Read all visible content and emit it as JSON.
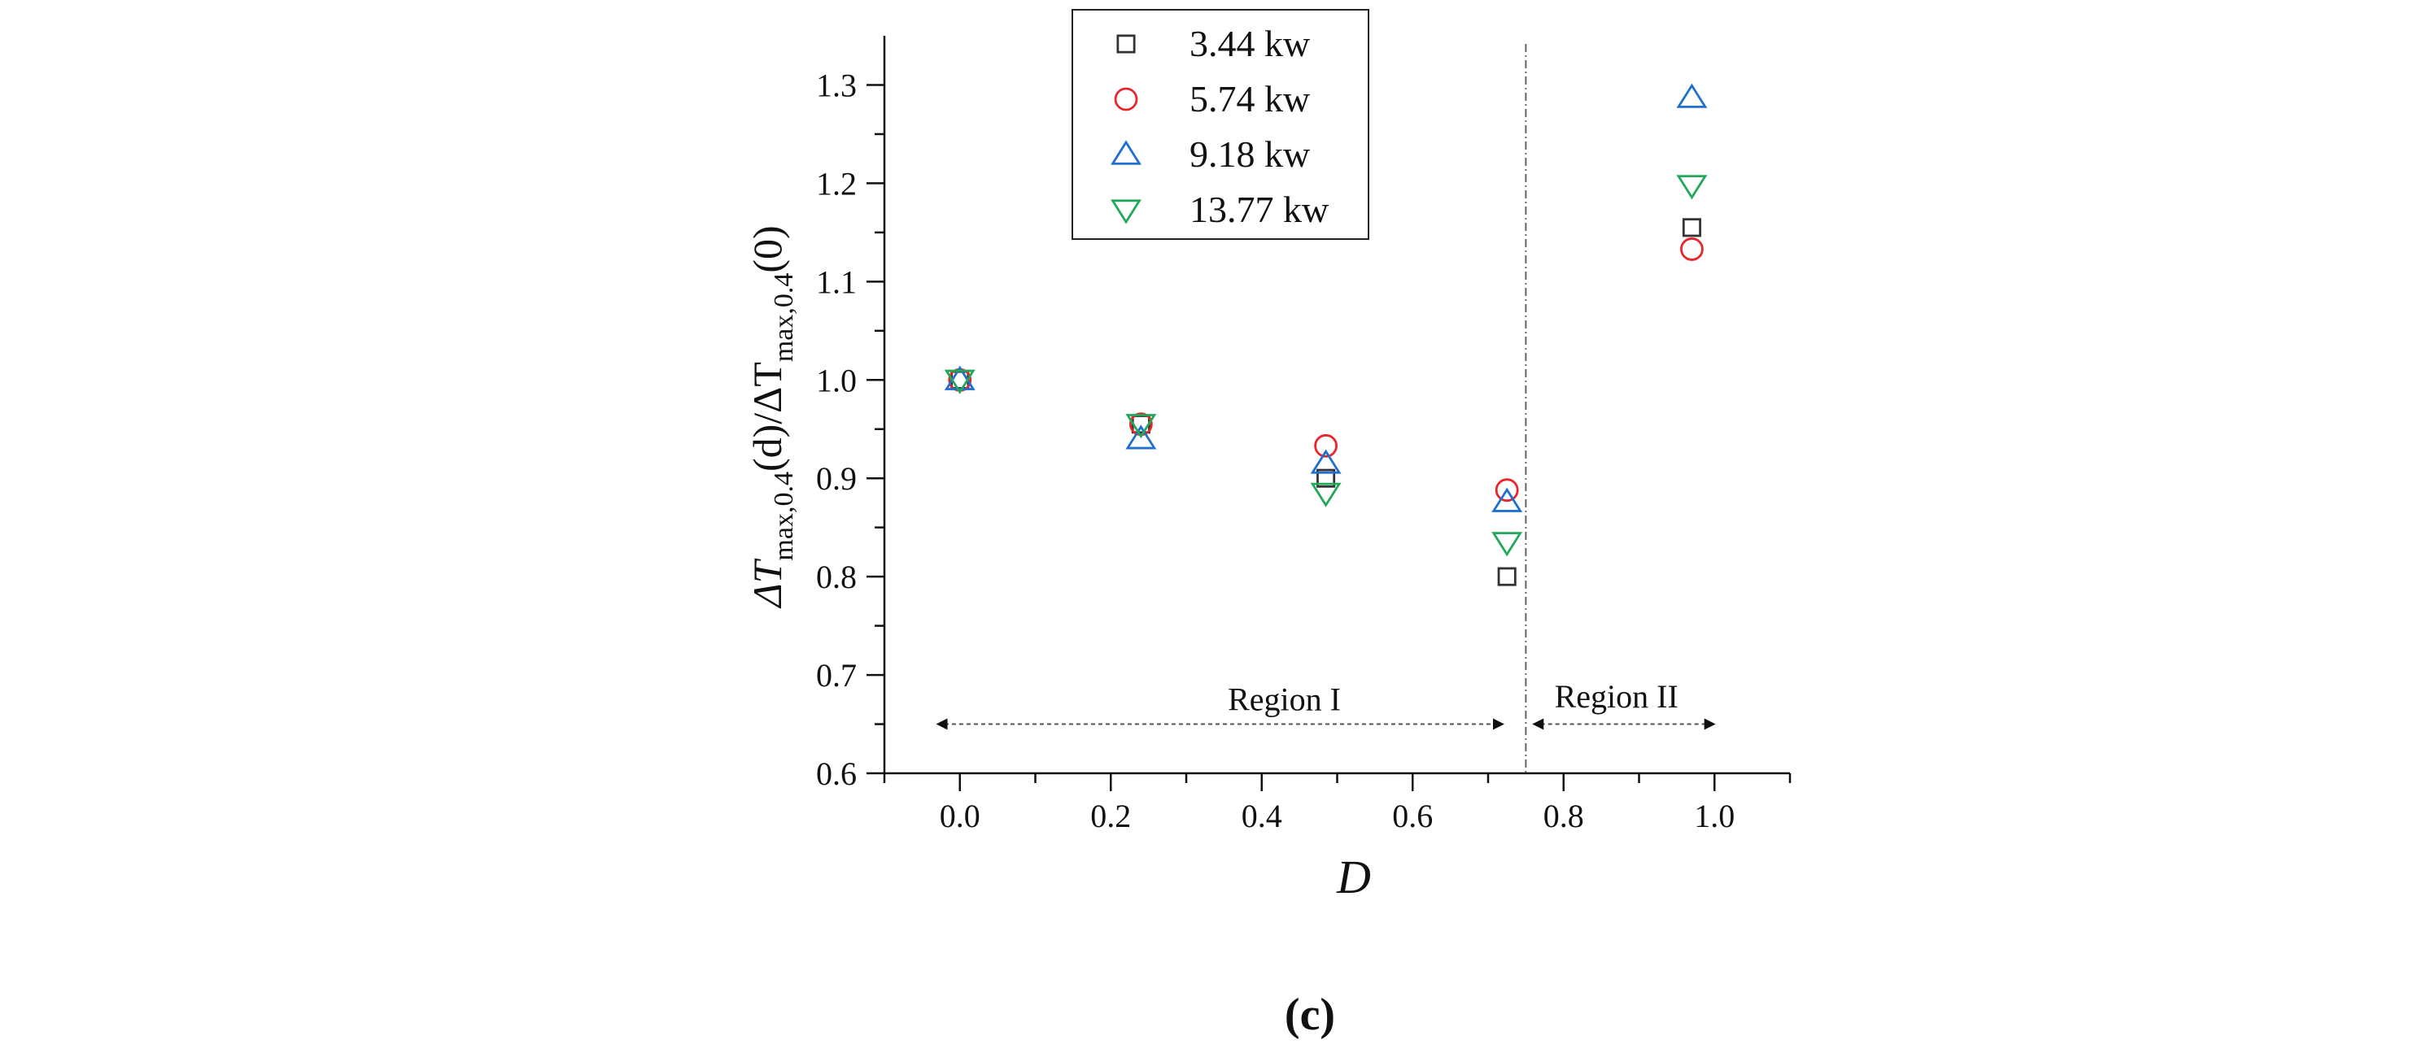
{
  "chart_data": {
    "type": "scatter",
    "title": "",
    "xlabel": "D",
    "ylabel": {
      "prefix": "ΔT",
      "sub1": "max,0.4",
      "mid": "(d)/ΔT",
      "sub2": "max,0.4",
      "suffix": "(0)"
    },
    "xlim": [
      -0.1,
      1.1
    ],
    "ylim": [
      0.6,
      1.35
    ],
    "x_ticks": [
      0.0,
      0.2,
      0.4,
      0.6,
      0.8,
      1.0
    ],
    "x_tick_labels": [
      "0.0",
      "0.2",
      "0.4",
      "0.6",
      "0.8",
      "1.0"
    ],
    "y_ticks": [
      0.6,
      0.7,
      0.8,
      0.9,
      1.0,
      1.1,
      1.2,
      1.3
    ],
    "y_tick_labels": [
      "0.6",
      "0.7",
      "0.8",
      "0.9",
      "1.0",
      "1.1",
      "1.2",
      "1.3"
    ],
    "legend_position": "top-center",
    "series": [
      {
        "name": "3.44 kw",
        "marker": "square",
        "color": "#333333",
        "x": [
          0.0,
          0.24,
          0.485,
          0.725,
          0.97
        ],
        "y": [
          1.0,
          0.955,
          0.9,
          0.8,
          1.155
        ]
      },
      {
        "name": "5.74 kw",
        "marker": "circle",
        "color": "#e8262b",
        "x": [
          0.0,
          0.24,
          0.485,
          0.725,
          0.97
        ],
        "y": [
          1.0,
          0.955,
          0.933,
          0.888,
          1.133
        ]
      },
      {
        "name": "9.18 kw",
        "marker": "triangle-up",
        "color": "#1f6fd1",
        "x": [
          0.0,
          0.24,
          0.485,
          0.725,
          0.97
        ],
        "y": [
          1.0,
          0.94,
          0.915,
          0.876,
          1.287
        ]
      },
      {
        "name": "13.77 kw",
        "marker": "triangle-down",
        "color": "#22a85a",
        "x": [
          0.0,
          0.24,
          0.485,
          0.725,
          0.97
        ],
        "y": [
          1.0,
          0.955,
          0.885,
          0.835,
          1.198
        ]
      }
    ],
    "annotations": {
      "divider_x": 0.75,
      "region1": {
        "label": "Region I",
        "x_from": -0.03,
        "x_to": 0.72,
        "y": 0.65,
        "label_x": 0.43,
        "label_y": 0.664
      },
      "region2": {
        "label": "Region II",
        "x_from": 0.76,
        "x_to": 1.0,
        "y": 0.65,
        "label_x": 0.87,
        "label_y": 0.667
      }
    }
  },
  "caption": "(c)"
}
